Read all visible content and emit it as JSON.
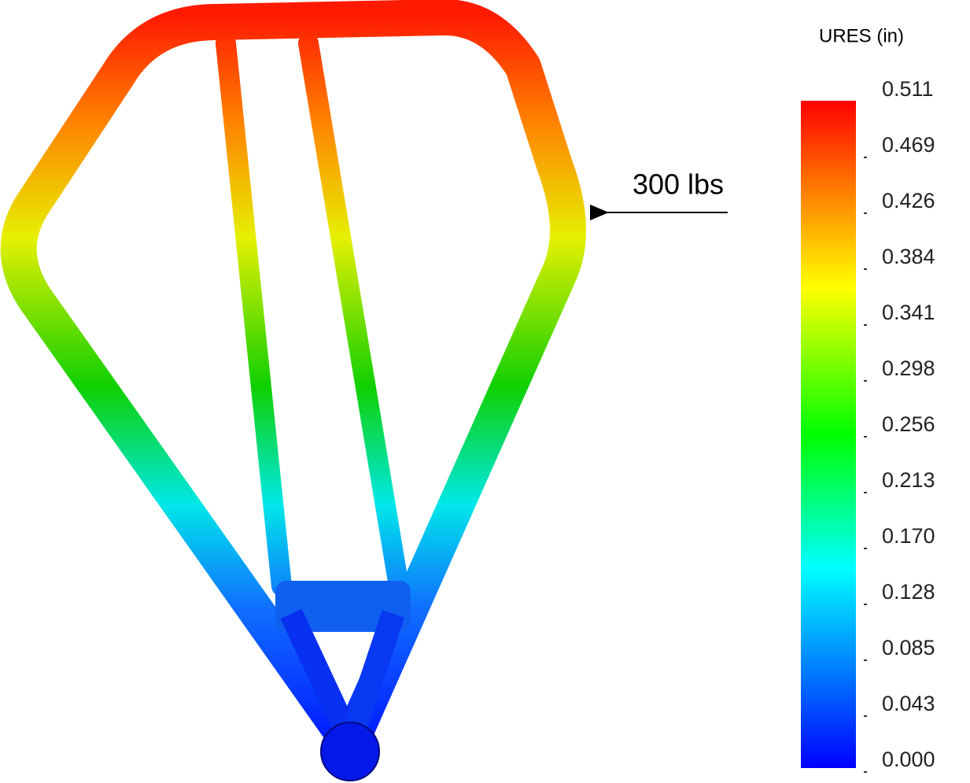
{
  "legend": {
    "title": "URES (in)",
    "labels": [
      "0.511",
      "0.469",
      "0.426",
      "0.384",
      "0.341",
      "0.298",
      "0.256",
      "0.213",
      "0.170",
      "0.128",
      "0.085",
      "0.043",
      "0.000"
    ]
  },
  "annotation": {
    "load": "300 lbs"
  }
}
